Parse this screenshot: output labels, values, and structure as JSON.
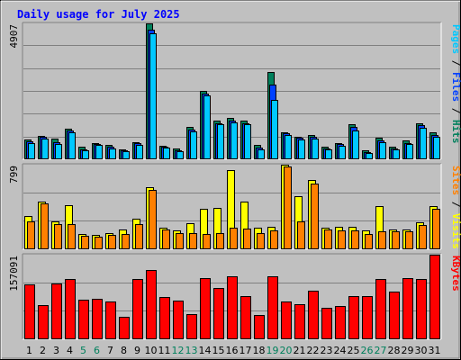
{
  "chart_data": {
    "type": "bar",
    "title": "Daily usage for July 2025",
    "categories": [
      "1",
      "2",
      "3",
      "4",
      "5",
      "6",
      "7",
      "8",
      "9",
      "10",
      "11",
      "12",
      "13",
      "14",
      "15",
      "16",
      "17",
      "18",
      "19",
      "20",
      "21",
      "22",
      "23",
      "24",
      "25",
      "26",
      "27",
      "28",
      "29",
      "30",
      "31"
    ],
    "weekend_days": [
      "5",
      "6",
      "12",
      "13",
      "19",
      "20",
      "26",
      "27"
    ],
    "panels": [
      {
        "name": "hits-files-pages",
        "ymax_label": "4907",
        "ylim": [
          0,
          4907
        ],
        "right_label": [
          {
            "text": "Pages",
            "color": "#00c8ff"
          },
          {
            "text": " / ",
            "color": "#000000"
          },
          {
            "text": "Files",
            "color": "#0040ff"
          },
          {
            "text": " / ",
            "color": "#000000"
          },
          {
            "text": "Hits",
            "color": "#00805c"
          }
        ],
        "series": [
          {
            "name": "Hits",
            "color": "#00805c",
            "values": [
              690,
              820,
              710,
              1080,
              410,
              570,
              490,
              340,
              600,
              4907,
              460,
              370,
              1130,
              2440,
              1360,
              1480,
              1360,
              480,
              3150,
              960,
              800,
              850,
              410,
              550,
              1250,
              300,
              760,
              420,
              640,
              1270,
              940
            ]
          },
          {
            "name": "Files",
            "color": "#0040ff",
            "values": [
              610,
              770,
              590,
              1000,
              330,
              520,
              420,
              290,
              540,
              4690,
              410,
              300,
              1050,
              2350,
              1290,
              1380,
              1290,
              390,
              2690,
              900,
              760,
              790,
              360,
              510,
              1130,
              240,
              670,
              360,
              560,
              1200,
              860
            ]
          },
          {
            "name": "Pages",
            "color": "#00c8ff",
            "values": [
              560,
              710,
              520,
              940,
              300,
              480,
              370,
              260,
              490,
              4560,
              380,
              270,
              980,
              2280,
              1230,
              1310,
              1230,
              340,
              2130,
              850,
              700,
              720,
              330,
              470,
              1030,
              210,
              600,
              320,
              510,
              1120,
              800
            ]
          }
        ]
      },
      {
        "name": "visits-sites",
        "ymax_label": "799",
        "ylim": [
          0,
          799
        ],
        "right_label": [
          {
            "text": "Sites",
            "color": "#ff8000"
          },
          {
            "text": " / ",
            "color": "#000000"
          },
          {
            "text": "Visits",
            "color": "#ffff00"
          }
        ],
        "series": [
          {
            "name": "Visits",
            "color": "#ffff00",
            "values": [
              310,
              450,
              260,
              410,
              140,
              130,
              150,
              180,
              280,
              580,
              200,
              170,
              240,
              380,
              390,
              750,
              450,
              200,
              210,
              800,
              500,
              650,
              200,
              210,
              210,
              170,
              400,
              180,
              180,
              250,
              400
            ]
          },
          {
            "name": "Sites",
            "color": "#ff8000",
            "values": [
              260,
              430,
              230,
              230,
              120,
              110,
              130,
              140,
              230,
              560,
              180,
              150,
              150,
              140,
              150,
              200,
              190,
              150,
              170,
              780,
              260,
              620,
              180,
              170,
              170,
              140,
              160,
              160,
              160,
              220,
              380
            ]
          }
        ]
      },
      {
        "name": "kbytes",
        "ymax_label": "157091",
        "ylim": [
          0,
          157091
        ],
        "right_label": [
          {
            "text": "KBytes",
            "color": "#ff0000"
          }
        ],
        "series": [
          {
            "name": "KBytes",
            "color": "#ff0000",
            "values": [
              102000,
              62000,
              103000,
              111000,
              73000,
              74000,
              70000,
              41000,
              112000,
              129000,
              77000,
              71000,
              45000,
              114000,
              95000,
              116000,
              79000,
              44000,
              117000,
              70000,
              64000,
              89000,
              58000,
              60000,
              79000,
              79000,
              111000,
              88000,
              114000,
              112000,
              157091
            ]
          }
        ]
      }
    ],
    "colors": {
      "background": "#c0c0c0",
      "title": "#0000ff",
      "grid": "#808080",
      "weekday_label": "#000000",
      "weekend_label": "#00805c"
    },
    "grid": true,
    "legend": "right-side vertical"
  }
}
